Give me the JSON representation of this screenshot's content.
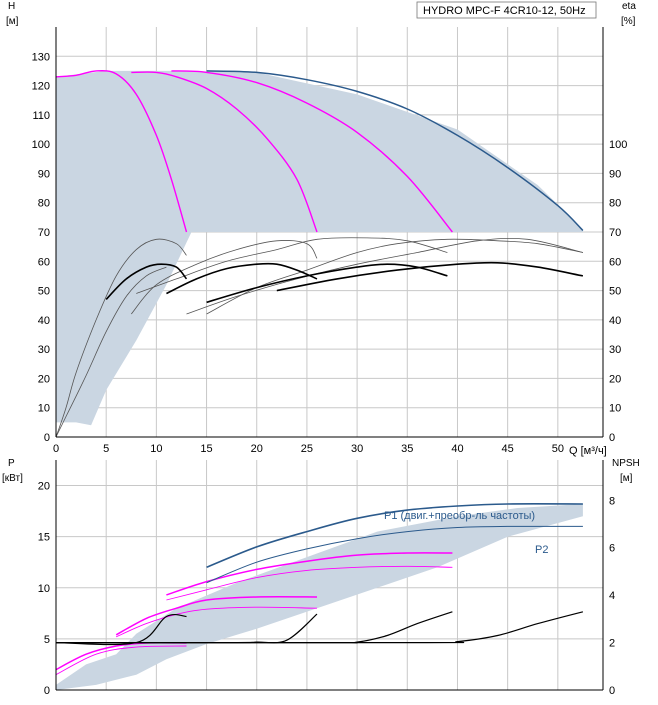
{
  "title": "HYDRO MPC-F 4CR10-12, 50Hz",
  "colors": {
    "grid": "#c8c8c8",
    "envelope": "#cad6e2",
    "pump_curve": "#2b5a8c",
    "speed_curve": "#ff00ff",
    "eta_curve": "#000000",
    "thin_curve": "#555555"
  },
  "chart_data": [
    {
      "type": "line",
      "name": "upper",
      "xlabel": "Q [м³/ч]",
      "ylabel": "H\n[м]",
      "y2label": "eta\n[%]",
      "xlim": [
        0,
        54.5
      ],
      "ylim": [
        0,
        140
      ],
      "x_ticks": [
        0,
        5,
        10,
        15,
        20,
        25,
        30,
        35,
        40,
        45,
        50
      ],
      "y_ticks": [
        0,
        10,
        20,
        30,
        40,
        50,
        60,
        70,
        80,
        90,
        100,
        110,
        120,
        130
      ],
      "y2_ticks": [
        0,
        10,
        20,
        30,
        40,
        50,
        60,
        70,
        80,
        90,
        100
      ],
      "grid": true,
      "envelope_outer": [
        [
          0,
          123
        ],
        [
          5,
          125
        ],
        [
          13,
          125
        ],
        [
          20,
          124.5
        ],
        [
          30,
          117
        ],
        [
          40,
          105
        ],
        [
          48,
          86
        ],
        [
          52.5,
          71
        ],
        [
          52.5,
          70
        ],
        [
          13.5,
          70
        ],
        [
          11,
          52
        ],
        [
          8,
          33
        ],
        [
          5,
          16
        ],
        [
          3.5,
          4
        ],
        [
          2,
          5
        ],
        [
          0,
          5
        ]
      ],
      "pump_curve_max": [
        [
          15,
          125
        ],
        [
          20,
          124.5
        ],
        [
          25,
          122
        ],
        [
          30,
          118
        ],
        [
          35,
          112
        ],
        [
          40,
          103
        ],
        [
          45,
          92
        ],
        [
          50,
          79
        ],
        [
          52.5,
          70.5
        ]
      ],
      "speed_curves": [
        [
          [
            0,
            123
          ],
          [
            2,
            123.5
          ],
          [
            4,
            125
          ],
          [
            6,
            124
          ],
          [
            8,
            117
          ],
          [
            10,
            103
          ],
          [
            11.5,
            88
          ],
          [
            13,
            70
          ]
        ],
        [
          [
            7.5,
            124.5
          ],
          [
            10,
            124.5
          ],
          [
            12,
            123
          ],
          [
            15,
            119
          ],
          [
            18,
            112
          ],
          [
            21,
            102
          ],
          [
            24,
            88
          ],
          [
            26,
            70
          ]
        ],
        [
          [
            11.5,
            125
          ],
          [
            15,
            124.5
          ],
          [
            20,
            121
          ],
          [
            25,
            114
          ],
          [
            30,
            104
          ],
          [
            35,
            89
          ],
          [
            39.5,
            70
          ]
        ]
      ],
      "eta_curves": [
        [
          [
            5,
            47
          ],
          [
            7,
            54
          ],
          [
            9,
            58
          ],
          [
            10.5,
            59
          ],
          [
            12,
            58
          ],
          [
            13,
            54
          ]
        ],
        [
          [
            11,
            49
          ],
          [
            14,
            54
          ],
          [
            17,
            57.5
          ],
          [
            20,
            59
          ],
          [
            22,
            59
          ],
          [
            24,
            57
          ],
          [
            26,
            54
          ]
        ],
        [
          [
            15,
            46
          ],
          [
            20,
            51
          ],
          [
            25,
            55
          ],
          [
            30,
            58
          ],
          [
            33,
            59
          ],
          [
            36,
            58
          ],
          [
            39,
            55
          ]
        ],
        [
          [
            22,
            50
          ],
          [
            28,
            54
          ],
          [
            34,
            57
          ],
          [
            40,
            59
          ],
          [
            44,
            59.5
          ],
          [
            48,
            58
          ],
          [
            52.5,
            55
          ]
        ]
      ],
      "eta_curves_thin": [
        [
          [
            0,
            0
          ],
          [
            1,
            10
          ],
          [
            2,
            22
          ],
          [
            4,
            40
          ],
          [
            6,
            55
          ],
          [
            8,
            64
          ],
          [
            10,
            67.5
          ],
          [
            12,
            66
          ],
          [
            13,
            62
          ]
        ],
        [
          [
            0,
            0
          ],
          [
            1,
            7
          ],
          [
            3,
            21
          ],
          [
            5,
            36
          ],
          [
            7,
            48
          ],
          [
            9,
            55
          ],
          [
            11,
            58
          ]
        ],
        [
          [
            7.5,
            42
          ],
          [
            10,
            52
          ],
          [
            14,
            59
          ],
          [
            18,
            64
          ],
          [
            22,
            67
          ],
          [
            25,
            66
          ],
          [
            26,
            61
          ]
        ],
        [
          [
            8,
            49
          ],
          [
            12,
            54
          ],
          [
            17,
            60
          ],
          [
            22,
            64
          ],
          [
            26,
            67.5
          ],
          [
            31,
            68
          ],
          [
            35,
            67
          ],
          [
            39,
            63
          ]
        ],
        [
          [
            13,
            42
          ],
          [
            18,
            48
          ],
          [
            24,
            54
          ],
          [
            30,
            59
          ],
          [
            36,
            63
          ],
          [
            42,
            67
          ],
          [
            47,
            67.5
          ],
          [
            52.5,
            63
          ]
        ],
        [
          [
            15,
            42
          ],
          [
            20,
            51
          ],
          [
            25,
            57
          ],
          [
            30,
            63
          ],
          [
            34,
            66
          ],
          [
            39,
            67.5
          ],
          [
            44,
            67
          ],
          [
            48,
            66
          ],
          [
            52.5,
            63
          ]
        ]
      ]
    },
    {
      "type": "line",
      "name": "lower",
      "ylabel": "P\n[кВт]",
      "y2label": "NPSH\n[м]",
      "xlim": [
        0,
        54.5
      ],
      "ylim": [
        0,
        22.5
      ],
      "y_ticks": [
        0,
        5,
        10,
        15,
        20
      ],
      "y2_ticks": [
        0,
        2,
        4,
        6,
        8
      ],
      "grid": true,
      "envelope": [
        [
          0,
          0.5
        ],
        [
          3,
          2.5
        ],
        [
          6,
          3.5
        ],
        [
          8,
          5.5
        ],
        [
          12,
          8
        ],
        [
          18,
          10.5
        ],
        [
          25,
          13
        ],
        [
          32,
          15.5
        ],
        [
          40,
          17
        ],
        [
          46,
          17.8
        ],
        [
          52.5,
          18.2
        ],
        [
          52.5,
          17
        ],
        [
          45,
          15
        ],
        [
          38,
          12
        ],
        [
          32,
          10
        ],
        [
          26,
          8
        ],
        [
          20,
          6
        ],
        [
          15,
          4.5
        ],
        [
          11,
          3
        ],
        [
          8,
          1.5
        ],
        [
          4,
          0.5
        ],
        [
          0,
          0
        ]
      ],
      "P1_top": [
        [
          15,
          12
        ],
        [
          20,
          14
        ],
        [
          25,
          15.5
        ],
        [
          30,
          16.8
        ],
        [
          35,
          17.6
        ],
        [
          40,
          18
        ],
        [
          45,
          18.2
        ],
        [
          52.5,
          18.2
        ]
      ],
      "P2": [
        [
          15,
          10.5
        ],
        [
          20,
          12.5
        ],
        [
          25,
          13.8
        ],
        [
          30,
          14.8
        ],
        [
          35,
          15.5
        ],
        [
          40,
          15.9
        ],
        [
          45,
          16
        ],
        [
          52.5,
          16
        ]
      ],
      "P1_label": "P1 (двиг.+преобр-ль частоты)",
      "P2_label": "P2",
      "P_speed_top": [
        [
          [
            0,
            2
          ],
          [
            3,
            3.5
          ],
          [
            6,
            4.3
          ],
          [
            9,
            4.6
          ],
          [
            13,
            4.6
          ]
        ],
        [
          [
            6,
            5.4
          ],
          [
            9,
            7
          ],
          [
            12,
            8
          ],
          [
            15,
            8.8
          ],
          [
            20,
            9.1
          ],
          [
            26,
            9.1
          ]
        ],
        [
          [
            11,
            9.3
          ],
          [
            15,
            10.6
          ],
          [
            20,
            11.8
          ],
          [
            25,
            12.6
          ],
          [
            30,
            13.2
          ],
          [
            35,
            13.4
          ],
          [
            39.5,
            13.4
          ]
        ]
      ],
      "P_speed_bottom": [
        [
          [
            0,
            1.5
          ],
          [
            4,
            3.5
          ],
          [
            8,
            4.2
          ],
          [
            13,
            4.3
          ]
        ],
        [
          [
            6,
            5.2
          ],
          [
            9,
            6.5
          ],
          [
            12,
            7.4
          ],
          [
            15,
            7.9
          ],
          [
            20,
            8.1
          ],
          [
            26,
            8
          ]
        ],
        [
          [
            11,
            8.8
          ],
          [
            15,
            9.8
          ],
          [
            20,
            11
          ],
          [
            25,
            11.7
          ],
          [
            30,
            12
          ],
          [
            35,
            12.1
          ],
          [
            39.5,
            12
          ]
        ]
      ],
      "npsh_curves": [
        [
          [
            0,
            2
          ],
          [
            8,
            2
          ],
          [
            11,
            3.1
          ],
          [
            13,
            3.1
          ]
        ],
        [
          [
            0,
            2
          ],
          [
            17,
            2
          ],
          [
            20,
            2.02
          ],
          [
            23,
            2.1
          ],
          [
            26,
            3.2
          ]
        ],
        [
          [
            0,
            2
          ],
          [
            27,
            2
          ],
          [
            30,
            2.02
          ],
          [
            33,
            2.3
          ],
          [
            36,
            2.8
          ],
          [
            39.5,
            3.3
          ]
        ],
        [
          [
            0,
            2
          ],
          [
            37,
            2
          ],
          [
            40,
            2.04
          ],
          [
            44,
            2.3
          ],
          [
            48,
            2.8
          ],
          [
            52.5,
            3.3
          ]
        ]
      ]
    }
  ]
}
